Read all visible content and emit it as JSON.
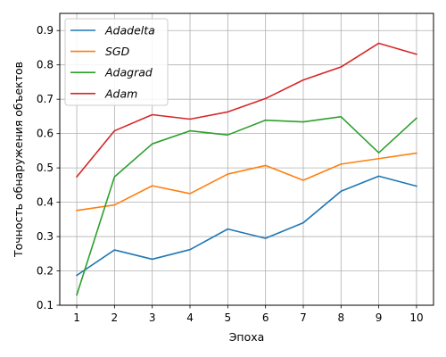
{
  "chart_data": {
    "type": "line",
    "title": "",
    "xlabel": "Эпоха",
    "ylabel": "Точность обнаружения объектов",
    "x": [
      1,
      2,
      3,
      4,
      5,
      6,
      7,
      8,
      9,
      10
    ],
    "xlim": [
      0.55,
      10.45
    ],
    "ylim": [
      0.1,
      0.95
    ],
    "x_ticks": [
      1,
      2,
      3,
      4,
      5,
      6,
      7,
      8,
      9,
      10
    ],
    "y_ticks": [
      0.1,
      0.2,
      0.3,
      0.4,
      0.5,
      0.6,
      0.7,
      0.8,
      0.9
    ],
    "y_tick_labels": [
      "0.1",
      "0.2",
      "0.3",
      "0.4",
      "0.5",
      "0.6",
      "0.7",
      "0.8",
      "0.9"
    ],
    "grid": true,
    "legend_position": "top-left",
    "series": [
      {
        "name": "Adadelta",
        "color": "#1f77b4",
        "values": [
          0.187,
          0.261,
          0.234,
          0.262,
          0.322,
          0.295,
          0.34,
          0.432,
          0.476,
          0.447
        ]
      },
      {
        "name": "SGD",
        "color": "#ff7f0e",
        "values": [
          0.376,
          0.392,
          0.448,
          0.425,
          0.482,
          0.507,
          0.464,
          0.511,
          0.527,
          0.543
        ]
      },
      {
        "name": "Adagrad",
        "color": "#2ca02c",
        "values": [
          0.13,
          0.474,
          0.57,
          0.608,
          0.596,
          0.639,
          0.634,
          0.649,
          0.544,
          0.645
        ]
      },
      {
        "name": "Adam",
        "color": "#d62728",
        "values": [
          0.474,
          0.608,
          0.655,
          0.642,
          0.663,
          0.702,
          0.756,
          0.794,
          0.863,
          0.831
        ]
      }
    ]
  }
}
